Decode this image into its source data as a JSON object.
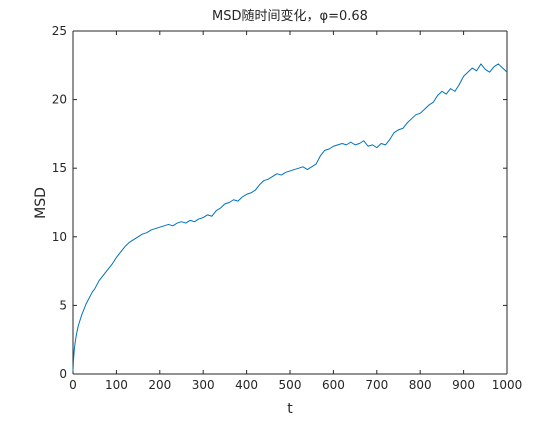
{
  "chart_data": {
    "type": "line",
    "title": "MSD随时间变化，φ=0.68",
    "xlabel": "t",
    "ylabel": "MSD",
    "xlim": [
      0,
      1000
    ],
    "ylim": [
      0,
      25
    ],
    "xticks": [
      0,
      100,
      200,
      300,
      400,
      500,
      600,
      700,
      800,
      900,
      1000
    ],
    "xtick_labels": [
      "0",
      "100",
      "200",
      "300",
      "400",
      "500",
      "600",
      "700",
      "800",
      "900",
      "1000"
    ],
    "yticks": [
      0,
      5,
      10,
      15,
      20,
      25
    ],
    "ytick_labels": [
      "0",
      "5",
      "10",
      "15",
      "20",
      "25"
    ],
    "grid": false,
    "legend": "none",
    "series": [
      {
        "color": "#0072BD",
        "x": [
          0,
          1,
          2,
          3,
          5,
          8,
          12,
          16,
          20,
          25,
          30,
          35,
          40,
          45,
          50,
          55,
          60,
          70,
          80,
          90,
          100,
          110,
          120,
          130,
          140,
          150,
          160,
          170,
          180,
          190,
          200,
          210,
          220,
          230,
          240,
          250,
          260,
          270,
          280,
          290,
          300,
          310,
          320,
          330,
          340,
          350,
          360,
          370,
          380,
          390,
          400,
          410,
          420,
          430,
          440,
          450,
          460,
          470,
          480,
          490,
          500,
          510,
          520,
          530,
          540,
          550,
          560,
          570,
          580,
          590,
          600,
          610,
          620,
          630,
          640,
          650,
          660,
          670,
          680,
          690,
          700,
          710,
          720,
          730,
          740,
          750,
          760,
          770,
          780,
          790,
          800,
          810,
          820,
          830,
          840,
          850,
          860,
          870,
          880,
          890,
          900,
          910,
          920,
          930,
          940,
          950,
          960,
          970,
          980,
          990,
          1000
        ],
        "y": [
          0.2,
          0.9,
          1.4,
          1.8,
          2.3,
          2.9,
          3.5,
          3.9,
          4.3,
          4.7,
          5.1,
          5.4,
          5.7,
          6.0,
          6.2,
          6.5,
          6.8,
          7.2,
          7.6,
          8.0,
          8.5,
          8.9,
          9.3,
          9.6,
          9.8,
          10.0,
          10.2,
          10.3,
          10.5,
          10.6,
          10.7,
          10.8,
          10.9,
          10.8,
          11.0,
          11.1,
          11.0,
          11.2,
          11.1,
          11.3,
          11.4,
          11.6,
          11.5,
          11.9,
          12.1,
          12.4,
          12.5,
          12.7,
          12.6,
          12.9,
          13.1,
          13.2,
          13.4,
          13.8,
          14.1,
          14.2,
          14.4,
          14.6,
          14.5,
          14.7,
          14.8,
          14.9,
          15.0,
          15.1,
          14.9,
          15.1,
          15.3,
          15.9,
          16.3,
          16.4,
          16.6,
          16.7,
          16.8,
          16.7,
          16.9,
          16.7,
          16.8,
          17.0,
          16.6,
          16.7,
          16.5,
          16.8,
          16.7,
          17.1,
          17.6,
          17.8,
          17.9,
          18.3,
          18.6,
          18.9,
          19.0,
          19.3,
          19.6,
          19.8,
          20.3,
          20.6,
          20.4,
          20.8,
          20.6,
          21.1,
          21.7,
          22.0,
          22.3,
          22.1,
          22.6,
          22.2,
          22.0,
          22.4,
          22.6,
          22.3,
          22.0
        ]
      }
    ]
  }
}
